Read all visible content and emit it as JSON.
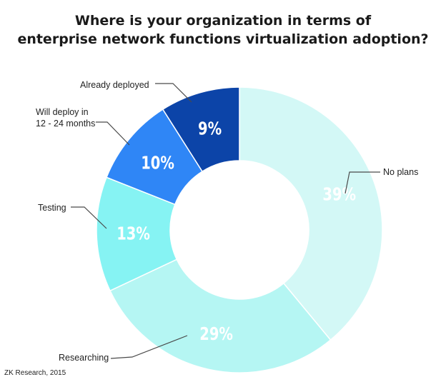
{
  "chart_data": {
    "type": "pie",
    "title_lines": [
      "Where is your organization in terms of",
      "enterprise network functions virtualization adoption?"
    ],
    "slices": [
      {
        "label": "No plans",
        "value": 39,
        "text": "39%",
        "color": "#d3f8f6",
        "label_color": "#ffffff"
      },
      {
        "label": "Researching",
        "value": 29,
        "text": "29%",
        "color": "#b5f6f3",
        "label_color": "#ffffff"
      },
      {
        "label": "Testing",
        "value": 13,
        "text": "13%",
        "color": "#86f3f3",
        "label_color": "#ffffff"
      },
      {
        "label": "Will deploy in 12 - 24 months",
        "label_lines": [
          "Will deploy in",
          "12 - 24 months"
        ],
        "value": 10,
        "text": "10%",
        "color": "#2f86f6",
        "label_color": "#ffffff"
      },
      {
        "label": "Already deployed",
        "value": 9,
        "text": "9%",
        "color": "#0c44a8",
        "label_color": "#ffffff"
      }
    ],
    "donut": true
  },
  "footer": {
    "source": "ZK Research, 2015"
  }
}
